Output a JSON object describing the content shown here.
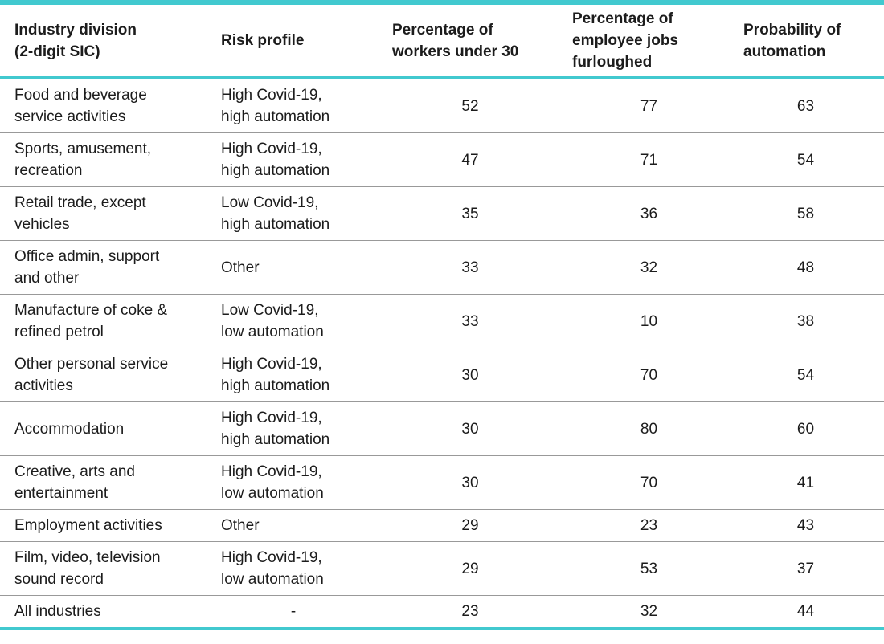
{
  "accent_color": "#41c9cf",
  "separator_color": "#999999",
  "table": {
    "headers": [
      "Industry division\n(2-digit SIC)",
      "Risk profile",
      "Percentage of\nworkers under 30",
      "Percentage of\nemployee jobs\nfurloughed",
      "Probability of\nautomation"
    ],
    "rows": [
      [
        "Food and beverage\nservice activities",
        "High Covid-19,\nhigh automation",
        "52",
        "77",
        "63"
      ],
      [
        "Sports, amusement,\nrecreation",
        "High Covid-19,\nhigh automation",
        "47",
        "71",
        "54"
      ],
      [
        "Retail trade, except\nvehicles",
        "Low Covid-19,\nhigh automation",
        "35",
        "36",
        "58"
      ],
      [
        "Office admin, support\nand other",
        "Other",
        "33",
        "32",
        "48"
      ],
      [
        "Manufacture of coke &\nrefined petrol",
        "Low Covid-19,\nlow automation",
        "33",
        "10",
        "38"
      ],
      [
        "Other personal service\nactivities",
        "High Covid-19,\nhigh automation",
        "30",
        "70",
        "54"
      ],
      [
        "Accommodation",
        "High Covid-19,\nhigh automation",
        "30",
        "80",
        "60"
      ],
      [
        "Creative, arts and\nentertainment",
        "High Covid-19,\nlow automation",
        "30",
        "70",
        "41"
      ],
      [
        "Employment activities",
        "Other",
        "29",
        "23",
        "43"
      ],
      [
        "Film, video, television\nsound record",
        "High Covid-19,\nlow automation",
        "29",
        "53",
        "37"
      ],
      [
        "All industries",
        "-",
        "23",
        "32",
        "44"
      ]
    ]
  },
  "chart_data": {
    "type": "table",
    "columns": [
      "Industry division (2-digit SIC)",
      "Risk profile",
      "Percentage of workers under 30",
      "Percentage of employee jobs furloughed",
      "Probability of automation"
    ],
    "rows": [
      {
        "industry": "Food and beverage service activities",
        "risk_profile": "High Covid-19, high automation",
        "pct_workers_under_30": 52,
        "pct_jobs_furloughed": 77,
        "probability_of_automation": 63
      },
      {
        "industry": "Sports, amusement, recreation",
        "risk_profile": "High Covid-19, high automation",
        "pct_workers_under_30": 47,
        "pct_jobs_furloughed": 71,
        "probability_of_automation": 54
      },
      {
        "industry": "Retail trade, except vehicles",
        "risk_profile": "Low Covid-19, high automation",
        "pct_workers_under_30": 35,
        "pct_jobs_furloughed": 36,
        "probability_of_automation": 58
      },
      {
        "industry": "Office admin, support and other",
        "risk_profile": "Other",
        "pct_workers_under_30": 33,
        "pct_jobs_furloughed": 32,
        "probability_of_automation": 48
      },
      {
        "industry": "Manufacture of coke & refined petrol",
        "risk_profile": "Low Covid-19, low automation",
        "pct_workers_under_30": 33,
        "pct_jobs_furloughed": 10,
        "probability_of_automation": 38
      },
      {
        "industry": "Other personal service activities",
        "risk_profile": "High Covid-19, high automation",
        "pct_workers_under_30": 30,
        "pct_jobs_furloughed": 70,
        "probability_of_automation": 54
      },
      {
        "industry": "Accommodation",
        "risk_profile": "High Covid-19, high automation",
        "pct_workers_under_30": 30,
        "pct_jobs_furloughed": 80,
        "probability_of_automation": 60
      },
      {
        "industry": "Creative, arts and entertainment",
        "risk_profile": "High Covid-19, low automation",
        "pct_workers_under_30": 30,
        "pct_jobs_furloughed": 70,
        "probability_of_automation": 41
      },
      {
        "industry": "Employment activities",
        "risk_profile": "Other",
        "pct_workers_under_30": 29,
        "pct_jobs_furloughed": 23,
        "probability_of_automation": 43
      },
      {
        "industry": "Film, video, television sound record",
        "risk_profile": "High Covid-19, low automation",
        "pct_workers_under_30": 29,
        "pct_jobs_furloughed": 53,
        "probability_of_automation": 37
      },
      {
        "industry": "All industries",
        "risk_profile": "-",
        "pct_workers_under_30": 23,
        "pct_jobs_furloughed": 32,
        "probability_of_automation": 44
      }
    ]
  }
}
